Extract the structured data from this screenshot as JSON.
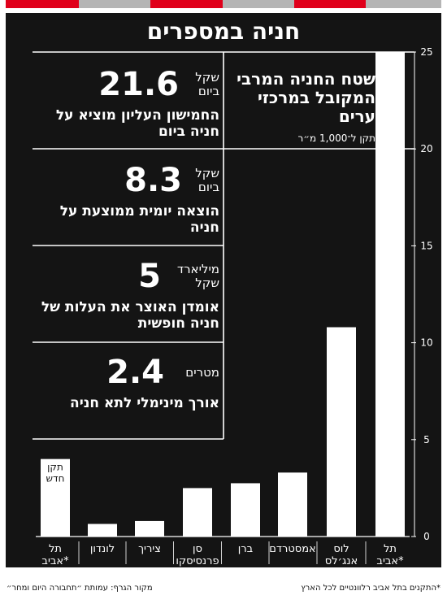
{
  "title": "חניה במספרים",
  "stats": [
    {
      "value": "21.6",
      "unit": "שקל ביום",
      "desc": "החמישון העליון מוציא על חניה ביום"
    },
    {
      "value": "8.3",
      "unit": "שקל ביום",
      "desc": "הוצאה יומית ממוצעת על חניה"
    },
    {
      "value": "5",
      "unit": "מיליארד שקל",
      "desc": "אומדן האוצר את העלות של חניה חופשית"
    },
    {
      "value": "2.4",
      "unit": "מטרים",
      "desc": "אורך מינימלי לתא חניה"
    }
  ],
  "chart_data": {
    "type": "bar",
    "title": "שטח החניה המרבי המקובל במרכזי ערים",
    "subtitle": "תקן ל־1,000 מ״ר",
    "categories": [
      "תל אביב*",
      "לוס אנג׳לס",
      "אמסטרדם",
      "ברן",
      "סן פרנסיסקו",
      "ציריך",
      "לונדון",
      "תל אביב*"
    ],
    "values": [
      25,
      10.8,
      3.3,
      2.75,
      2.5,
      0.8,
      0.65,
      4
    ],
    "bar_labels": [
      "",
      "",
      "",
      "",
      "",
      "",
      "",
      "תקן חדש"
    ],
    "ylim": [
      0,
      25
    ],
    "yticks": [
      0,
      5,
      10,
      15,
      20,
      25
    ],
    "grid": false,
    "bar_color": "#ffffff"
  },
  "footer": {
    "note": "*התקנים בתל אביב רלוונטיים לכל הארץ",
    "source": "מקור הגרף: עמותת ״תחבורה היום ומחר״"
  },
  "colors": {
    "background": "#141414",
    "text": "#ffffff",
    "accent": "#e0001b",
    "stripe_gray": "#b5b5b5"
  }
}
